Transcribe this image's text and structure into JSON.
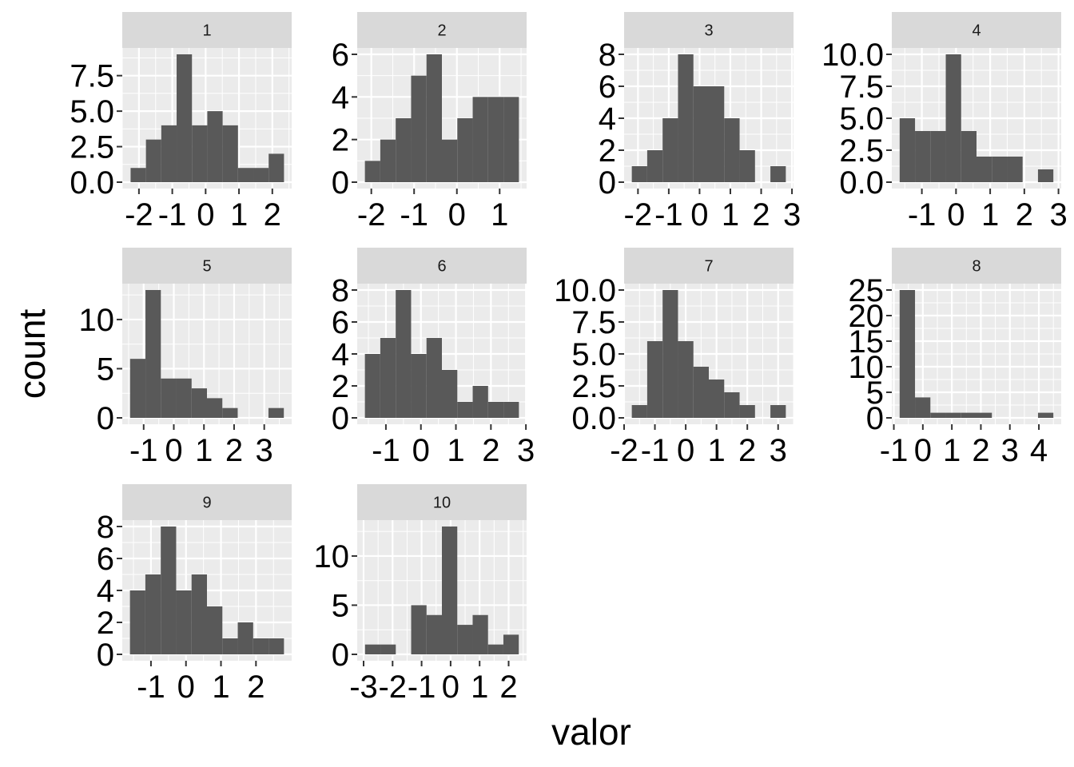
{
  "figure": {
    "xlabel": "valor",
    "ylabel": "count",
    "colors": {
      "panel_bg": "#ebebeb",
      "grid": "#ffffff",
      "bar": "#595959",
      "strip_bg": "#d9d9d9",
      "tick": "#333333"
    }
  },
  "chart_data": [
    {
      "type": "bar",
      "facet": "1",
      "bins": [
        [
          -2.25,
          -1.79,
          1
        ],
        [
          -1.79,
          -1.33,
          3
        ],
        [
          -1.33,
          -0.87,
          4
        ],
        [
          -0.87,
          -0.41,
          9
        ],
        [
          -0.41,
          0.05,
          4
        ],
        [
          0.05,
          0.51,
          5
        ],
        [
          0.51,
          0.97,
          4
        ],
        [
          0.97,
          1.43,
          1
        ],
        [
          1.43,
          1.89,
          1
        ],
        [
          1.89,
          2.35,
          2
        ]
      ],
      "xticks": [
        -2,
        -1,
        0,
        1,
        2
      ],
      "xtick_labels": [
        "-2",
        "-1",
        "0",
        "1",
        "2"
      ],
      "yticks": [
        0,
        2.5,
        5,
        7.5
      ],
      "ytick_labels": [
        "0.0",
        "2.5",
        "5.0",
        "7.5"
      ],
      "xlim": [
        -2.5,
        2.58
      ],
      "ylim": [
        -0.45,
        9.45
      ]
    },
    {
      "type": "bar",
      "facet": "2",
      "bins": [
        [
          -2.15,
          -1.79,
          1
        ],
        [
          -1.79,
          -1.43,
          2
        ],
        [
          -1.43,
          -1.07,
          3
        ],
        [
          -1.07,
          -0.71,
          5
        ],
        [
          -0.71,
          -0.35,
          6
        ],
        [
          -0.35,
          0.01,
          2
        ],
        [
          0.01,
          0.37,
          3
        ],
        [
          0.37,
          0.73,
          4
        ],
        [
          0.73,
          1.09,
          4
        ],
        [
          1.09,
          1.45,
          4
        ]
      ],
      "xticks": [
        -2,
        -1,
        0,
        1
      ],
      "xtick_labels": [
        "-2",
        "-1",
        "0",
        "1"
      ],
      "yticks": [
        0,
        2,
        4,
        6
      ],
      "ytick_labels": [
        "0",
        "2",
        "4",
        "6"
      ],
      "xlim": [
        -2.33,
        1.63
      ],
      "ylim": [
        -0.3,
        6.3
      ]
    },
    {
      "type": "bar",
      "facet": "3",
      "bins": [
        [
          -2.2,
          -1.7,
          1
        ],
        [
          -1.7,
          -1.2,
          2
        ],
        [
          -1.2,
          -0.7,
          4
        ],
        [
          -0.7,
          -0.2,
          8
        ],
        [
          -0.2,
          0.3,
          6
        ],
        [
          0.3,
          0.8,
          6
        ],
        [
          0.8,
          1.3,
          4
        ],
        [
          1.3,
          1.8,
          2
        ],
        [
          1.8,
          2.3,
          0
        ],
        [
          2.3,
          2.8,
          1
        ]
      ],
      "xticks": [
        -2,
        -1,
        0,
        1,
        2,
        3
      ],
      "xtick_labels": [
        "-2",
        "-1",
        "0",
        "1",
        "2",
        "3"
      ],
      "yticks": [
        0,
        2,
        4,
        6,
        8
      ],
      "ytick_labels": [
        "0",
        "2",
        "4",
        "6",
        "8"
      ],
      "xlim": [
        -2.45,
        3.05
      ],
      "ylim": [
        -0.4,
        8.4
      ]
    },
    {
      "type": "bar",
      "facet": "4",
      "bins": [
        [
          -1.65,
          -1.2,
          5
        ],
        [
          -1.2,
          -0.75,
          4
        ],
        [
          -0.75,
          -0.3,
          4
        ],
        [
          -0.3,
          0.15,
          10
        ],
        [
          0.15,
          0.6,
          4
        ],
        [
          0.6,
          1.05,
          2
        ],
        [
          1.05,
          1.5,
          2
        ],
        [
          1.5,
          1.95,
          2
        ],
        [
          1.95,
          2.4,
          0
        ],
        [
          2.4,
          2.85,
          1
        ]
      ],
      "xticks": [
        -1,
        0,
        1,
        2,
        3
      ],
      "xtick_labels": [
        "-1",
        "0",
        "1",
        "2",
        "3"
      ],
      "yticks": [
        0,
        2.5,
        5,
        7.5,
        10
      ],
      "ytick_labels": [
        "0.0",
        "2.5",
        "5.0",
        "7.5",
        "10.0"
      ],
      "xlim": [
        -1.88,
        3.08
      ],
      "ylim": [
        -0.5,
        10.5
      ]
    },
    {
      "type": "bar",
      "facet": "5",
      "bins": [
        [
          -1.45,
          -0.94,
          6
        ],
        [
          -0.94,
          -0.43,
          13
        ],
        [
          -0.43,
          0.08,
          4
        ],
        [
          0.08,
          0.59,
          4
        ],
        [
          0.59,
          1.1,
          3
        ],
        [
          1.1,
          1.61,
          2
        ],
        [
          1.61,
          2.12,
          1
        ],
        [
          2.12,
          2.63,
          0
        ],
        [
          2.63,
          3.14,
          0
        ],
        [
          3.14,
          3.65,
          1
        ]
      ],
      "xticks": [
        -1,
        0,
        1,
        2,
        3
      ],
      "xtick_labels": [
        "-1",
        "0",
        "1",
        "2",
        "3"
      ],
      "yticks": [
        0,
        5,
        10
      ],
      "ytick_labels": [
        "0",
        "5",
        "10"
      ],
      "xlim": [
        -1.71,
        3.91
      ],
      "ylim": [
        -0.65,
        13.65
      ]
    },
    {
      "type": "bar",
      "facet": "6",
      "bins": [
        [
          -1.6,
          -1.16,
          4
        ],
        [
          -1.16,
          -0.72,
          5
        ],
        [
          -0.72,
          -0.28,
          8
        ],
        [
          -0.28,
          0.16,
          4
        ],
        [
          0.16,
          0.6,
          5
        ],
        [
          0.6,
          1.04,
          3
        ],
        [
          1.04,
          1.48,
          1
        ],
        [
          1.48,
          1.92,
          2
        ],
        [
          1.92,
          2.36,
          1
        ],
        [
          2.36,
          2.8,
          1
        ]
      ],
      "xticks": [
        -1,
        0,
        1,
        2,
        3
      ],
      "xtick_labels": [
        "-1",
        "0",
        "1",
        "2",
        "3"
      ],
      "yticks": [
        0,
        2,
        4,
        6,
        8
      ],
      "ytick_labels": [
        "0",
        "2",
        "4",
        "6",
        "8"
      ],
      "xlim": [
        -1.82,
        3.02
      ],
      "ylim": [
        -0.4,
        8.4
      ]
    },
    {
      "type": "bar",
      "facet": "7",
      "bins": [
        [
          -1.75,
          -1.25,
          1
        ],
        [
          -1.25,
          -0.75,
          6
        ],
        [
          -0.75,
          -0.25,
          10
        ],
        [
          -0.25,
          0.25,
          6
        ],
        [
          0.25,
          0.75,
          4
        ],
        [
          0.75,
          1.25,
          3
        ],
        [
          1.25,
          1.75,
          2
        ],
        [
          1.75,
          2.25,
          1
        ],
        [
          2.25,
          2.75,
          0
        ],
        [
          2.75,
          3.25,
          1
        ]
      ],
      "xticks": [
        -2,
        -1,
        0,
        1,
        2,
        3
      ],
      "xtick_labels": [
        "-2",
        "-1",
        "0",
        "1",
        "2",
        "3"
      ],
      "yticks": [
        0,
        2.5,
        5,
        7.5,
        10
      ],
      "ytick_labels": [
        "0.0",
        "2.5",
        "5.0",
        "7.5",
        "10.0"
      ],
      "xlim": [
        -2.0,
        3.5
      ],
      "ylim": [
        -0.5,
        10.5
      ]
    },
    {
      "type": "bar",
      "facet": "8",
      "bins": [
        [
          -0.8,
          -0.27,
          25
        ],
        [
          -0.27,
          0.26,
          4
        ],
        [
          0.26,
          0.79,
          1
        ],
        [
          0.79,
          1.32,
          1
        ],
        [
          1.32,
          1.85,
          1
        ],
        [
          1.85,
          2.38,
          1
        ],
        [
          2.38,
          2.91,
          0
        ],
        [
          2.91,
          3.44,
          0
        ],
        [
          3.44,
          3.97,
          0
        ],
        [
          3.97,
          4.5,
          1
        ]
      ],
      "xticks": [
        -1,
        0,
        1,
        2,
        3,
        4
      ],
      "xtick_labels": [
        "-1",
        "0",
        "1",
        "2",
        "3",
        "4"
      ],
      "yticks": [
        0,
        5,
        10,
        15,
        20,
        25
      ],
      "ytick_labels": [
        "0",
        "5",
        "10",
        "15",
        "20",
        "25"
      ],
      "xlim": [
        -1.07,
        4.77
      ],
      "ylim": [
        -1.25,
        26.25
      ]
    },
    {
      "type": "bar",
      "facet": "9",
      "bins": [
        [
          -1.6,
          -1.16,
          4
        ],
        [
          -1.16,
          -0.72,
          5
        ],
        [
          -0.72,
          -0.28,
          8
        ],
        [
          -0.28,
          0.16,
          4
        ],
        [
          0.16,
          0.6,
          5
        ],
        [
          0.6,
          1.04,
          3
        ],
        [
          1.04,
          1.48,
          1
        ],
        [
          1.48,
          1.92,
          2
        ],
        [
          1.92,
          2.36,
          1
        ],
        [
          2.36,
          2.8,
          1
        ]
      ],
      "xticks": [
        -1,
        0,
        1,
        2
      ],
      "xtick_labels": [
        "-1",
        "0",
        "1",
        "2"
      ],
      "yticks": [
        0,
        2,
        4,
        6,
        8
      ],
      "ytick_labels": [
        "0",
        "2",
        "4",
        "6",
        "8"
      ],
      "xlim": [
        -1.82,
        3.02
      ],
      "ylim": [
        -0.4,
        8.4
      ]
    },
    {
      "type": "bar",
      "facet": "10",
      "bins": [
        [
          -2.95,
          -2.42,
          1
        ],
        [
          -2.42,
          -1.89,
          1
        ],
        [
          -1.89,
          -1.36,
          0
        ],
        [
          -1.36,
          -0.83,
          5
        ],
        [
          -0.83,
          -0.3,
          4
        ],
        [
          -0.3,
          0.23,
          13
        ],
        [
          0.23,
          0.76,
          3
        ],
        [
          0.76,
          1.29,
          4
        ],
        [
          1.29,
          1.82,
          1
        ],
        [
          1.82,
          2.35,
          2
        ]
      ],
      "xticks": [
        -3,
        -2,
        -1,
        0,
        1,
        2
      ],
      "xtick_labels": [
        "-3",
        "-2",
        "-1",
        "0",
        "1",
        "2"
      ],
      "yticks": [
        0,
        5,
        10
      ],
      "ytick_labels": [
        "0",
        "5",
        "10"
      ],
      "xlim": [
        -3.22,
        2.62
      ],
      "ylim": [
        -0.65,
        13.65
      ]
    }
  ]
}
